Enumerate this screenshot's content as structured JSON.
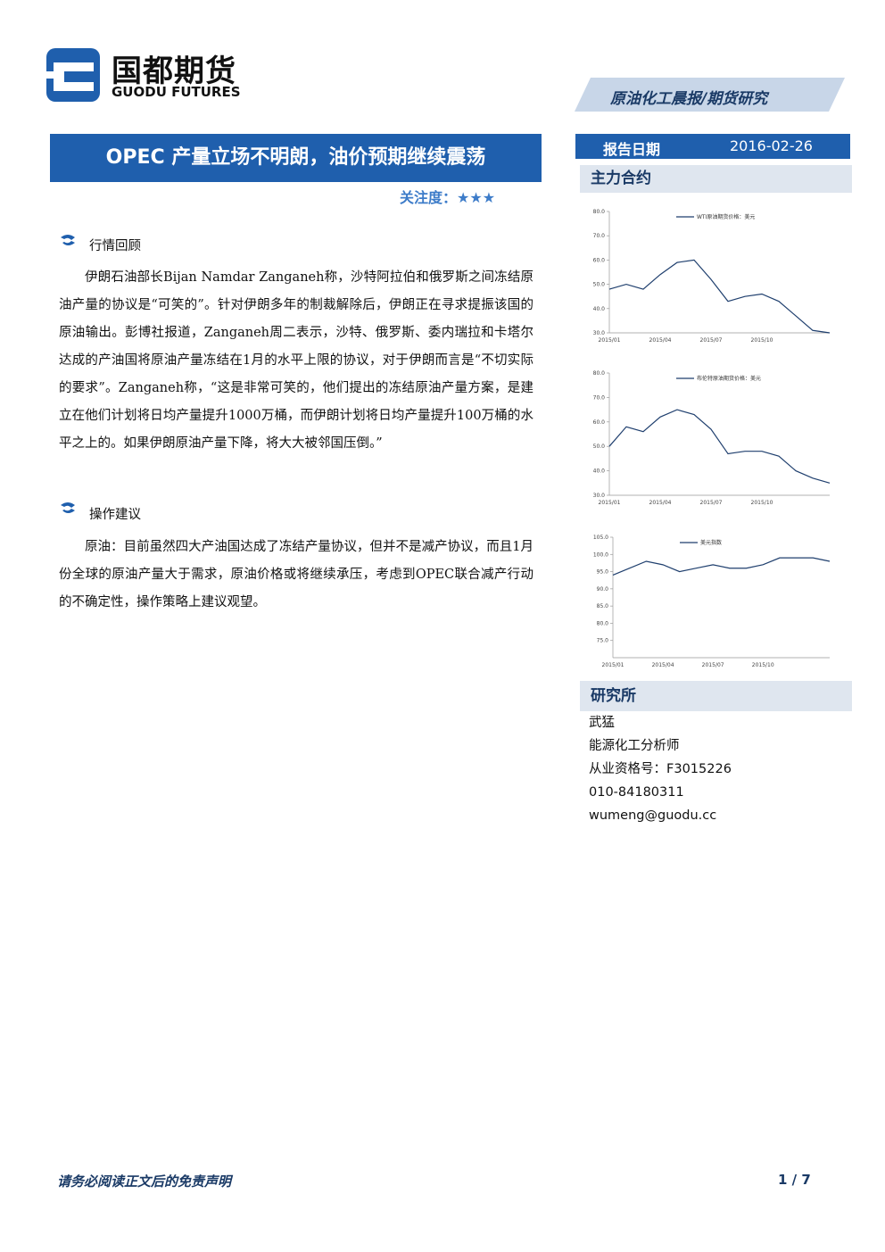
{
  "header": {
    "brand_cn": "国都期货",
    "brand_en": "GUODU FUTURES",
    "report_type": "原油化工晨报/期货研究"
  },
  "title": "OPEC 产量立场不明朗，油价预期继续震荡",
  "attention": "关注度：★★★",
  "sections": [
    {
      "heading": "行情回顾",
      "paragraphs": [
        "伊朗石油部长Bijan Namdar Zanganeh称，沙特阿拉伯和俄罗斯之间冻结原油产量的协议是“可笑的”。针对伊朗多年的制裁解除后，伊朗正在寻求提振该国的原油输出。彭博社报道，Zanganeh周二表示，沙特、俄罗斯、委内瑞拉和卡塔尔达成的产油国将原油产量冻结在1月的水平上限的协议，对于伊朗而言是“不切实际的要求”。Zanganeh称，“这是非常可笑的，他们提出的冻结原油产量方案，是建立在他们计划将日均产量提升1000万桶，而伊朗计划将日均产量提升100万桶的水平之上的。如果伊朗原油产量下降，将大大被邻国压倒。”"
      ]
    },
    {
      "heading": "操作建议",
      "paragraphs": [
        "原油：目前虽然四大产油国达成了冻结产量协议，但并不是减产协议，而且1月份全球的原油产量大于需求，原油价格或将继续承压，考虑到OPEC联合减产行动的不确定性，操作策略上建议观望。"
      ]
    }
  ],
  "sidebar": {
    "date_label": "报告日期",
    "date": "2016-02-26",
    "contracts_heading": "主力合约",
    "institute_heading": "研究所",
    "contact": [
      "武猛",
      "能源化工分析师",
      "从业资格号：F3015226",
      "010-84180311",
      "wumeng@guodu.cc"
    ]
  },
  "chart_data": [
    {
      "type": "line",
      "categories": [
        "2015/01",
        null,
        null,
        "2015/04",
        null,
        null,
        "2015/07",
        null,
        null,
        "2015/10",
        null,
        null,
        null,
        null
      ],
      "series": [
        {
          "name": "WTI原油期货价格：美元",
          "color": "#1f3f6e",
          "values": [
            48,
            50,
            48,
            54,
            59,
            60,
            52,
            43,
            45,
            46,
            43,
            37,
            31,
            30
          ]
        }
      ],
      "ylim": [
        30,
        80
      ],
      "yticks": [
        {
          "value": 30,
          "label": "30.0"
        },
        {
          "value": 40,
          "label": "40.0"
        },
        {
          "value": 50,
          "label": "50.0"
        },
        {
          "value": 60,
          "label": "60.0"
        },
        {
          "value": 70,
          "label": "70.0"
        },
        {
          "value": 80,
          "label": "80.0"
        }
      ]
    },
    {
      "type": "line",
      "categories": [
        "2015/01",
        null,
        null,
        "2015/04",
        null,
        null,
        "2015/07",
        null,
        null,
        "2015/10",
        null,
        null,
        null,
        null
      ],
      "series": [
        {
          "name": "布伦特原油期货价格：美元",
          "color": "#1f3f6e",
          "values": [
            50,
            58,
            56,
            62,
            65,
            63,
            57,
            47,
            48,
            48,
            46,
            40,
            37,
            35
          ]
        }
      ],
      "ylim": [
        30,
        80
      ],
      "yticks": [
        {
          "value": 30,
          "label": "30.0"
        },
        {
          "value": 40,
          "label": "40.0"
        },
        {
          "value": 50,
          "label": "50.0"
        },
        {
          "value": 60,
          "label": "60.0"
        },
        {
          "value": 70,
          "label": "70.0"
        },
        {
          "value": 80,
          "label": "80.0"
        }
      ]
    },
    {
      "type": "line",
      "categories": [
        "2015/01",
        null,
        null,
        "2015/04",
        null,
        null,
        "2015/07",
        null,
        null,
        "2015/10",
        null,
        null,
        null,
        null
      ],
      "series": [
        {
          "name": "美元指数",
          "color": "#1f3f6e",
          "values": [
            94,
            96,
            98,
            97,
            95,
            96,
            97,
            96,
            96,
            97,
            99,
            99,
            99,
            98
          ]
        }
      ],
      "ylim": [
        70,
        105
      ],
      "yticks": [
        {
          "value": 75,
          "label": "75.0"
        },
        {
          "value": 80,
          "label": "80.0"
        },
        {
          "value": 85,
          "label": "85.0"
        },
        {
          "value": 90,
          "label": "90.0"
        },
        {
          "value": 95,
          "label": "95.0"
        },
        {
          "value": 100,
          "label": "100.0"
        },
        {
          "value": 105,
          "label": "105.0"
        }
      ]
    }
  ],
  "footer": {
    "disclaimer": "请务必阅读正文后的免责声明",
    "page": "1 / 7"
  }
}
